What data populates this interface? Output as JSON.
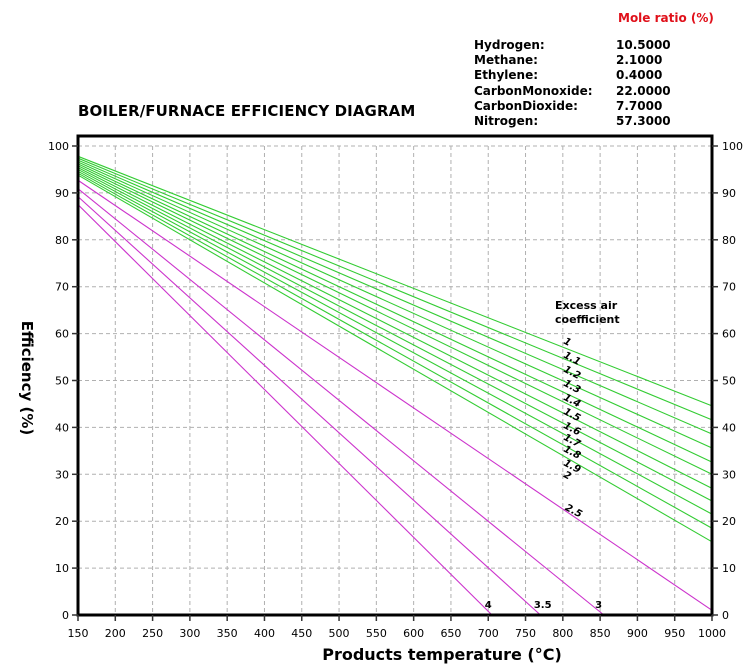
{
  "mole_ratio": {
    "header": "Mole ratio (%)",
    "gases": [
      {
        "name": "Hydrogen:",
        "value": "10.5000"
      },
      {
        "name": "Methane:",
        "value": "2.1000"
      },
      {
        "name": "Ethylene:",
        "value": "0.4000"
      },
      {
        "name": "CarbonMonoxide:",
        "value": "22.0000"
      },
      {
        "name": "CarbonDioxide:",
        "value": "7.7000"
      },
      {
        "name": "Nitrogen:",
        "value": "57.3000"
      }
    ]
  },
  "chart_data": {
    "type": "line",
    "title": "BOILER/FURNACE EFFICIENCY DIAGRAM",
    "xlabel": "Products temperature (°C)",
    "ylabel": "Efficiency (%)",
    "xlim": [
      150,
      1000
    ],
    "ylim": [
      0,
      100
    ],
    "xticks": [
      150,
      200,
      250,
      300,
      350,
      400,
      450,
      500,
      550,
      600,
      650,
      700,
      750,
      800,
      850,
      900,
      950,
      1000
    ],
    "yticks": [
      0,
      10,
      20,
      30,
      40,
      50,
      60,
      70,
      80,
      90,
      100
    ],
    "grid": true,
    "annotation": "Excess air\ncoefficient",
    "annotation_lines": [
      "Excess air",
      "coefficient"
    ],
    "series": [
      {
        "name": "1",
        "color": "#33cc33",
        "points": [
          [
            150,
            97.8
          ],
          [
            1000,
            44.6
          ]
        ]
      },
      {
        "name": "1.1",
        "color": "#33cc33",
        "points": [
          [
            150,
            97.4
          ],
          [
            1000,
            41.6
          ]
        ]
      },
      {
        "name": "1.2",
        "color": "#33cc33",
        "points": [
          [
            150,
            97.0
          ],
          [
            1000,
            38.6
          ]
        ]
      },
      {
        "name": "1.3",
        "color": "#33cc33",
        "points": [
          [
            150,
            96.6
          ],
          [
            1000,
            35.6
          ]
        ]
      },
      {
        "name": "1.4",
        "color": "#33cc33",
        "points": [
          [
            150,
            96.2
          ],
          [
            1000,
            32.6
          ]
        ]
      },
      {
        "name": "1.5",
        "color": "#33cc33",
        "points": [
          [
            150,
            95.8
          ],
          [
            1000,
            30.0
          ]
        ]
      },
      {
        "name": "1.6",
        "color": "#33cc33",
        "points": [
          [
            150,
            95.4
          ],
          [
            1000,
            27.0
          ]
        ]
      },
      {
        "name": "1.7",
        "color": "#33cc33",
        "points": [
          [
            150,
            95.0
          ],
          [
            1000,
            24.3
          ]
        ]
      },
      {
        "name": "1.8",
        "color": "#33cc33",
        "points": [
          [
            150,
            94.6
          ],
          [
            1000,
            21.5
          ]
        ]
      },
      {
        "name": "1.9",
        "color": "#33cc33",
        "points": [
          [
            150,
            94.2
          ],
          [
            1000,
            18.5
          ]
        ]
      },
      {
        "name": "2",
        "color": "#33cc33",
        "points": [
          [
            150,
            93.8
          ],
          [
            1000,
            15.6
          ]
        ]
      },
      {
        "name": "2.5",
        "color": "#cc33cc",
        "points": [
          [
            150,
            92.7
          ],
          [
            1000,
            1.0
          ]
        ]
      },
      {
        "name": "3",
        "color": "#cc33cc",
        "points": [
          [
            150,
            90.9
          ],
          [
            855,
            0
          ]
        ]
      },
      {
        "name": "3.5",
        "color": "#cc33cc",
        "points": [
          [
            150,
            89.2
          ],
          [
            770,
            0
          ]
        ]
      },
      {
        "name": "4",
        "color": "#cc33cc",
        "points": [
          [
            150,
            87.5
          ],
          [
            705,
            0
          ]
        ]
      }
    ],
    "labels": [
      {
        "text": "1",
        "x": 800,
        "y": 58.0
      },
      {
        "text": "1.1",
        "x": 800,
        "y": 55.0
      },
      {
        "text": "1.2",
        "x": 800,
        "y": 52.0
      },
      {
        "text": "1.3",
        "x": 800,
        "y": 49.0
      },
      {
        "text": "1.4",
        "x": 800,
        "y": 46.0
      },
      {
        "text": "1.5",
        "x": 800,
        "y": 43.0
      },
      {
        "text": "1.6",
        "x": 800,
        "y": 40.0
      },
      {
        "text": "1.7",
        "x": 800,
        "y": 37.5
      },
      {
        "text": "1.8",
        "x": 800,
        "y": 35.0
      },
      {
        "text": "1.9",
        "x": 800,
        "y": 32.0
      },
      {
        "text": "2",
        "x": 800,
        "y": 29.5
      },
      {
        "text": "2.5",
        "x": 802,
        "y": 22.5
      },
      {
        "text": "3",
        "x": 848,
        "y": 1.5
      },
      {
        "text": "3.5",
        "x": 773,
        "y": 1.5
      },
      {
        "text": "4",
        "x": 700,
        "y": 1.5
      }
    ]
  }
}
